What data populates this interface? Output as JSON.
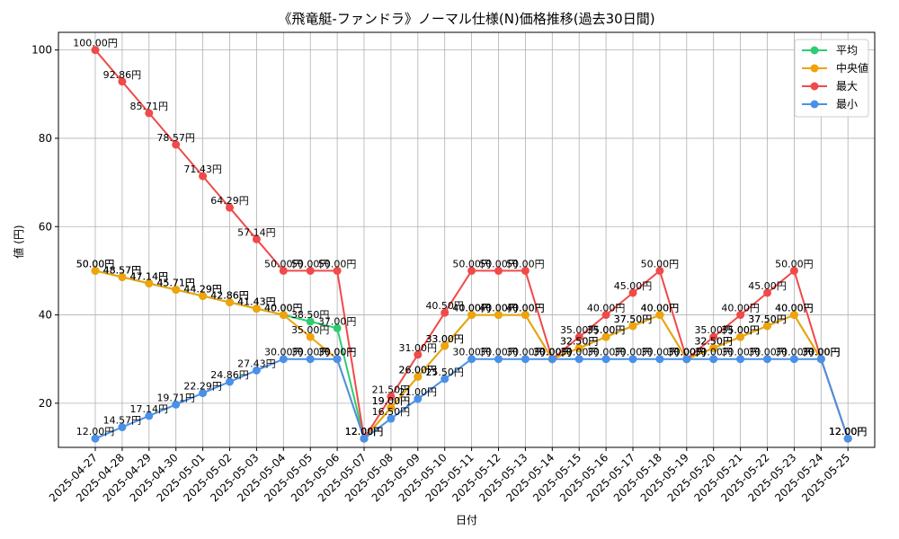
{
  "chart_data": {
    "type": "line",
    "title": "《飛竜艇-ファンドラ》ノーマル仕様(N)価格推移(過去30日間)",
    "xlabel": "日付",
    "ylabel": "値 (円)",
    "ylim": [
      10,
      104
    ],
    "yticks": [
      20,
      40,
      60,
      80,
      100
    ],
    "grid": true,
    "legend_position": "top-right",
    "label_suffix": "円",
    "categories": [
      "2025-04-27",
      "2025-04-28",
      "2025-04-29",
      "2025-04-30",
      "2025-05-01",
      "2025-05-02",
      "2025-05-03",
      "2025-05-04",
      "2025-05-05",
      "2025-05-06",
      "2025-05-07",
      "2025-05-08",
      "2025-05-09",
      "2025-05-10",
      "2025-05-11",
      "2025-05-12",
      "2025-05-13",
      "2025-05-14",
      "2025-05-15",
      "2025-05-16",
      "2025-05-17",
      "2025-05-18",
      "2025-05-19",
      "2025-05-20",
      "2025-05-21",
      "2025-05-22",
      "2025-05-23",
      "2025-05-24",
      "2025-05-25"
    ],
    "series": [
      {
        "name": "平均",
        "color": "#2ecc71",
        "values": [
          50.0,
          48.57,
          47.14,
          45.71,
          44.29,
          42.86,
          41.43,
          40.0,
          38.5,
          37.0,
          12.0,
          19.0,
          26.0,
          33.0,
          40.0,
          40.0,
          40.0,
          30.0,
          32.5,
          35.0,
          37.5,
          40.0,
          30.0,
          32.5,
          35.0,
          37.5,
          40.0,
          30.0,
          12.0
        ]
      },
      {
        "name": "中央値",
        "color": "#f0a30a",
        "values": [
          50.0,
          48.57,
          47.14,
          45.71,
          44.29,
          42.86,
          41.43,
          40.0,
          35.0,
          30.0,
          12.0,
          19.0,
          26.0,
          33.0,
          40.0,
          40.0,
          40.0,
          30.0,
          32.5,
          35.0,
          37.5,
          40.0,
          30.0,
          32.5,
          35.0,
          37.5,
          40.0,
          30.0,
          12.0
        ]
      },
      {
        "name": "最大",
        "color": "#f04a4a",
        "values": [
          100.0,
          92.86,
          85.71,
          78.57,
          71.43,
          64.29,
          57.14,
          50.0,
          50.0,
          50.0,
          12.0,
          21.5,
          31.0,
          40.5,
          50.0,
          50.0,
          50.0,
          30.0,
          35.0,
          40.0,
          45.0,
          50.0,
          30.0,
          35.0,
          40.0,
          45.0,
          50.0,
          30.0,
          12.0
        ]
      },
      {
        "name": "最小",
        "color": "#4a90e8",
        "values": [
          12.0,
          14.57,
          17.14,
          19.71,
          22.29,
          24.86,
          27.43,
          30.0,
          30.0,
          30.0,
          12.0,
          16.5,
          21.0,
          25.5,
          30.0,
          30.0,
          30.0,
          30.0,
          30.0,
          30.0,
          30.0,
          30.0,
          30.0,
          30.0,
          30.0,
          30.0,
          30.0,
          30.0,
          12.0
        ]
      }
    ]
  }
}
